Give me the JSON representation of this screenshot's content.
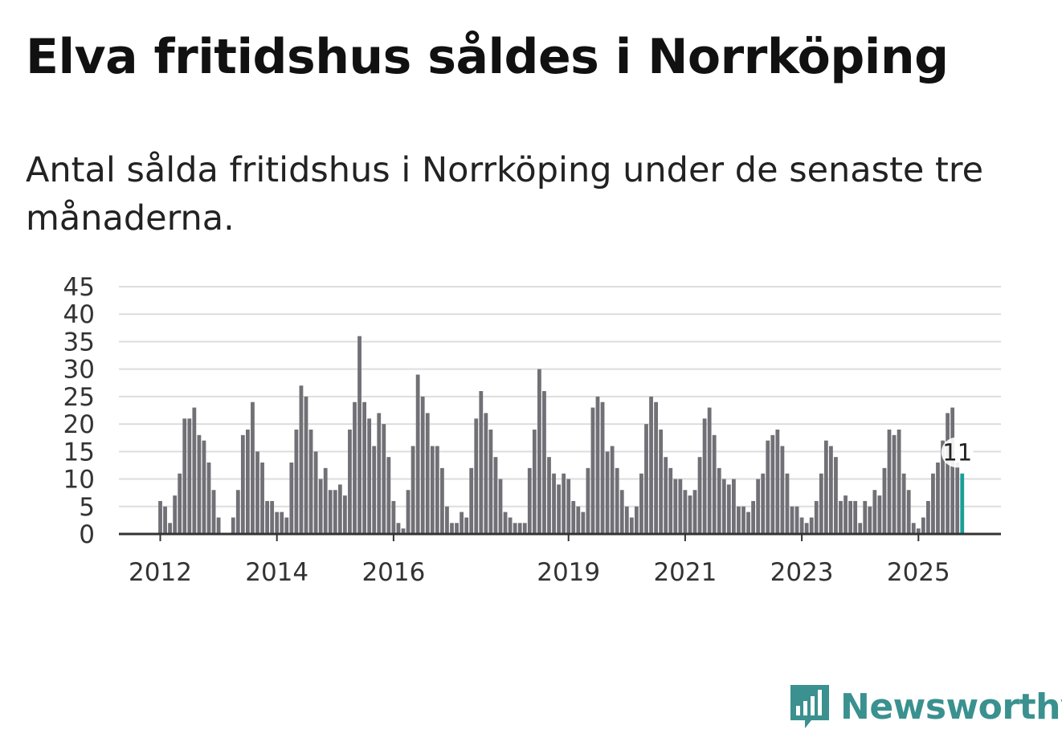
{
  "title": "Elva fritidshus såldes i Norrköping",
  "subtitle": "Antal sålda fritidshus i Norrköping under de senaste tre månaderna.",
  "logo": {
    "text": "Newsworthy",
    "icon": "bar-chart-speech-bubble-icon",
    "color": "#3a918f"
  },
  "chart_data": {
    "type": "bar",
    "title": "",
    "xlabel": "",
    "ylabel": "",
    "ylim": [
      0,
      45
    ],
    "yticks": [
      "0",
      "5",
      "10",
      "15",
      "20",
      "25",
      "30",
      "35",
      "40",
      "45"
    ],
    "xticks": [
      {
        "label": "2012",
        "index": 0
      },
      {
        "label": "2014",
        "index": 24
      },
      {
        "label": "2016",
        "index": 48
      },
      {
        "label": "2019",
        "index": 84
      },
      {
        "label": "2021",
        "index": 108
      },
      {
        "label": "2023",
        "index": 132
      },
      {
        "label": "2025",
        "index": 156
      }
    ],
    "grid": true,
    "bar_color": "#707076",
    "highlight_color": "#1b9e98",
    "highlight_label": "11",
    "values": [
      6,
      5,
      2,
      7,
      11,
      21,
      21,
      23,
      18,
      17,
      13,
      8,
      3,
      0,
      0,
      3,
      8,
      18,
      19,
      24,
      15,
      13,
      6,
      6,
      4,
      4,
      3,
      13,
      19,
      27,
      25,
      19,
      15,
      10,
      12,
      8,
      8,
      9,
      7,
      19,
      24,
      36,
      24,
      21,
      16,
      22,
      20,
      14,
      6,
      2,
      1,
      8,
      16,
      29,
      25,
      22,
      16,
      16,
      12,
      5,
      2,
      2,
      4,
      3,
      12,
      21,
      26,
      22,
      19,
      14,
      10,
      4,
      3,
      2,
      2,
      2,
      12,
      19,
      30,
      26,
      14,
      11,
      9,
      11,
      10,
      6,
      5,
      4,
      12,
      23,
      25,
      24,
      15,
      16,
      12,
      8,
      5,
      3,
      5,
      11,
      20,
      25,
      24,
      19,
      14,
      12,
      10,
      10,
      8,
      7,
      8,
      14,
      21,
      23,
      18,
      12,
      10,
      9,
      10,
      5,
      5,
      4,
      6,
      10,
      11,
      17,
      18,
      19,
      16,
      11,
      5,
      5,
      3,
      2,
      3,
      6,
      11,
      17,
      16,
      14,
      6,
      7,
      6,
      6,
      2,
      6,
      5,
      8,
      7,
      12,
      19,
      18,
      19,
      11,
      8,
      2,
      1,
      3,
      6,
      11,
      13,
      17,
      22,
      23,
      13,
      11
    ]
  }
}
